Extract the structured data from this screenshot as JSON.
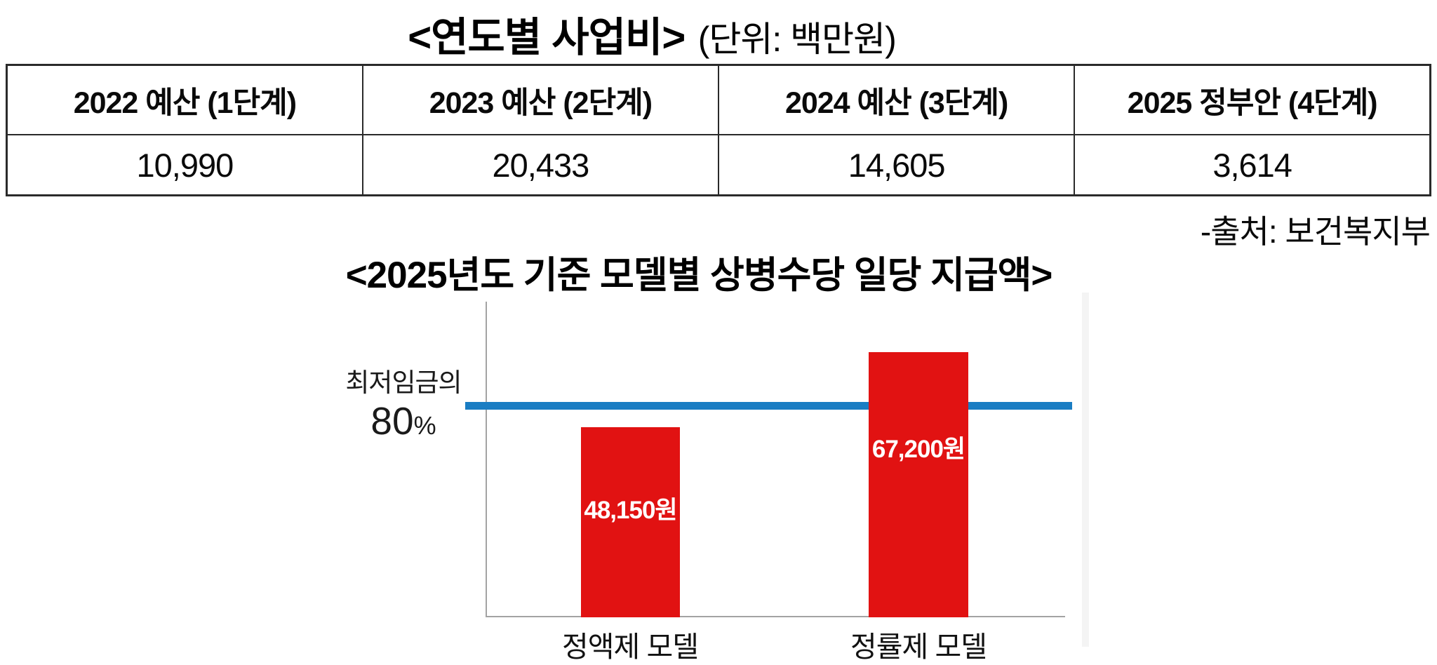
{
  "table_section": {
    "title_bold": "<연도별 사업비>",
    "title_unit": "(단위: 백만원)",
    "source": "-출처: 보건복지부"
  },
  "chart_section": {
    "title": "<2025년도 기준 모델별 상병수당 일당 지급액>"
  },
  "chart_data": [
    {
      "type": "table",
      "title": "<연도별 사업비>",
      "unit_note": "(단위: 백만원)",
      "headers": [
        "2022 예산 (1단계)",
        "2023 예산 (2단계)",
        "2024 예산 (3단계)",
        "2025 정부안 (4단계)"
      ],
      "rows": [
        [
          "10,990",
          "20,433",
          "14,605",
          "3,614"
        ]
      ],
      "source": "-출처: 보건복지부"
    },
    {
      "type": "bar",
      "title": "<2025년도 기준 모델별 상병수당 일당 지급액>",
      "categories": [
        "정액제 모델",
        "정률제 모델"
      ],
      "values": [
        48150,
        67200
      ],
      "bar_labels": [
        "48,150원",
        "67,200원"
      ],
      "bar_color": "#e11212",
      "ylim": [
        0,
        80000
      ],
      "grid": false,
      "legend": false,
      "axis_color": "#a3a3a3",
      "reference_line": {
        "label_line1": "최저임금의",
        "label_line2_big": "80",
        "label_line2_small": "%",
        "color": "#1a7dc3",
        "value_estimate": 53700
      }
    }
  ]
}
